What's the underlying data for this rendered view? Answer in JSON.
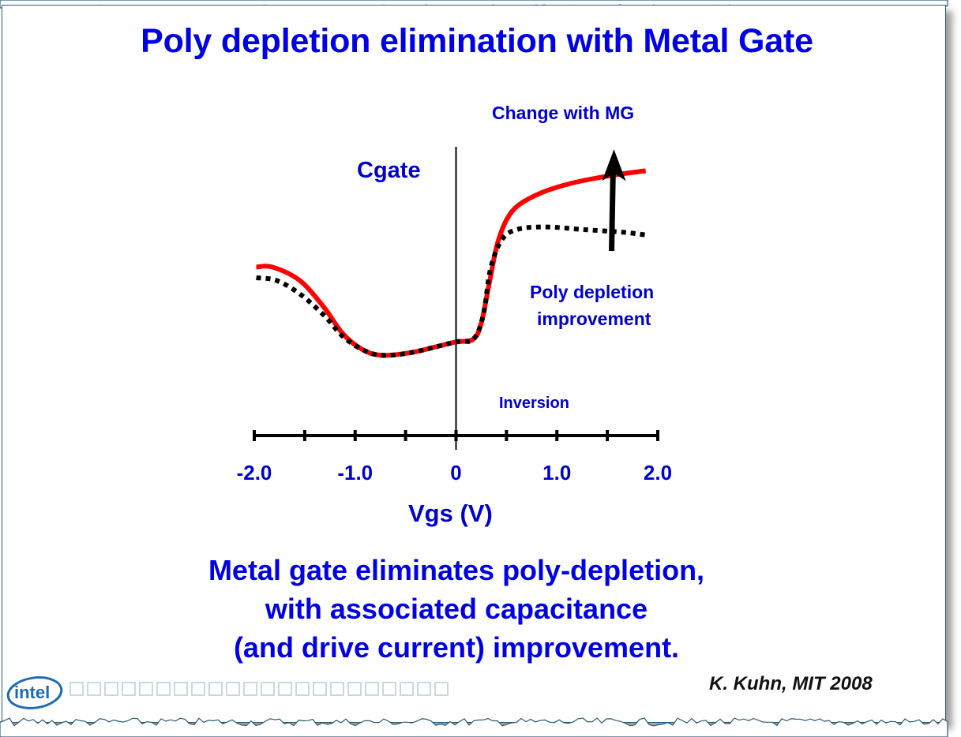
{
  "slide": {
    "title": "Poly depletion elimination with Metal Gate",
    "summary_lines": [
      "Metal gate eliminates poly-depletion,",
      "with associated capacitance",
      "(and drive current) improvement."
    ],
    "credit": "K. Kuhn, MIT 2008",
    "logo_text": "intel",
    "colors": {
      "title": "#0000e6",
      "label": "#0000cc",
      "metal_gate_curve": "#ff0000",
      "poly_gate_curve": "#000000",
      "arrow": "#000000"
    }
  },
  "chart_data": {
    "type": "line",
    "title": "",
    "xlabel": "Vgs (V)",
    "ylabel": "Cgate",
    "xlim": [
      -2.0,
      2.0
    ],
    "ylim": [
      0,
      1.05
    ],
    "x_ticks": [
      -2.0,
      -1.5,
      -1.0,
      -0.5,
      0,
      0.5,
      1.0,
      1.5,
      2.0
    ],
    "x_tick_labels": [
      {
        "value": -2.0,
        "label": "-2.0"
      },
      {
        "value": -1.0,
        "label": "-1.0"
      },
      {
        "value": 0,
        "label": "0"
      },
      {
        "value": 1.0,
        "label": "1.0"
      },
      {
        "value": 2.0,
        "label": "2.0"
      }
    ],
    "grid": false,
    "y_units": "arbitrary (relative capacitance)",
    "series": [
      {
        "name": "Metal gate (red, solid)",
        "style": "solid",
        "x": [
          -1.98,
          -1.82,
          -1.55,
          -1.31,
          -1.12,
          -0.92,
          -0.73,
          -0.45,
          -0.22,
          0.0,
          0.17,
          0.25,
          0.33,
          0.42,
          0.56,
          0.8,
          1.11,
          1.5,
          1.88
        ],
        "y": [
          0.63,
          0.63,
          0.58,
          0.48,
          0.38,
          0.32,
          0.3,
          0.31,
          0.33,
          0.35,
          0.36,
          0.42,
          0.57,
          0.73,
          0.84,
          0.9,
          0.94,
          0.97,
          0.99
        ]
      },
      {
        "name": "Poly gate (black, dotted)",
        "style": "dotted",
        "x": [
          -1.98,
          -1.78,
          -1.55,
          -1.31,
          -1.12,
          -0.92,
          -0.73,
          -0.45,
          0.0,
          0.17,
          0.27,
          0.34,
          0.45,
          0.6,
          0.88,
          1.27,
          1.66,
          1.88
        ],
        "y": [
          0.59,
          0.58,
          0.53,
          0.45,
          0.37,
          0.32,
          0.3,
          0.31,
          0.35,
          0.36,
          0.45,
          0.62,
          0.73,
          0.77,
          0.78,
          0.77,
          0.76,
          0.75
        ]
      }
    ],
    "annotations": [
      {
        "text": "Cgate",
        "role": "y-axis-label"
      },
      {
        "text": "Change with MG",
        "role": "arrow-label"
      },
      {
        "text": "Poly depletion",
        "role": "callout-line-1"
      },
      {
        "text": "improvement",
        "role": "callout-line-2"
      },
      {
        "text": "Inversion",
        "role": "region-label"
      }
    ],
    "arrow": {
      "x": 1.55,
      "from_y": 0.69,
      "to_y": 1.07,
      "direction": "up"
    }
  }
}
